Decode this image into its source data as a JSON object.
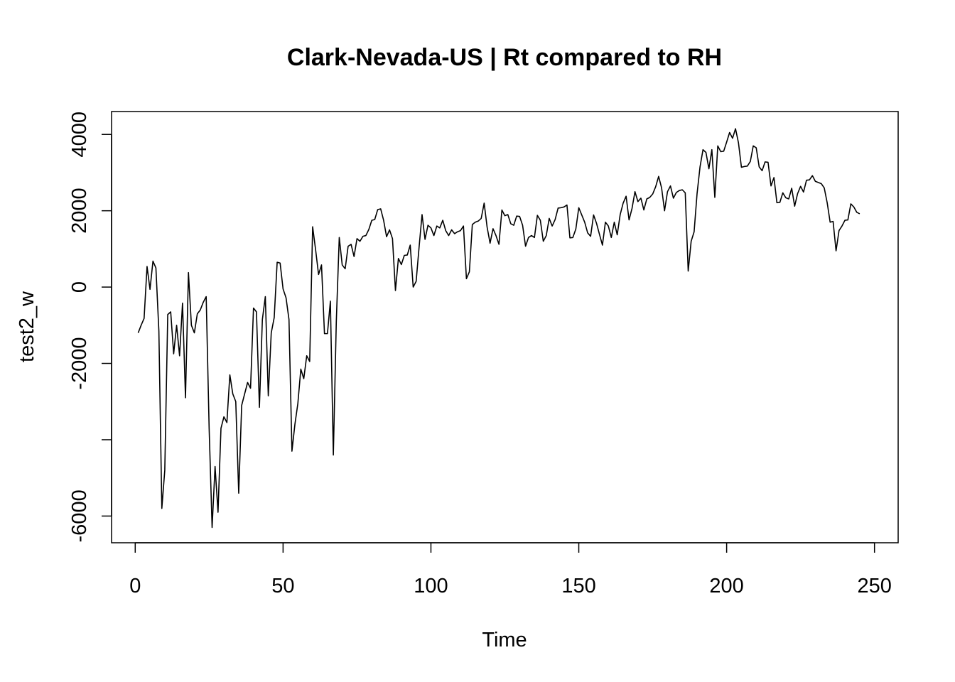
{
  "chart_data": {
    "type": "line",
    "title": "Clark-Nevada-US | Rt compared to RH",
    "xlabel": "Time",
    "ylabel": "test2_w",
    "xlim": [
      -8,
      258
    ],
    "ylim": [
      -6700,
      4600
    ],
    "x_ticks": [
      0,
      50,
      100,
      150,
      200,
      250
    ],
    "x_tick_labels": [
      "0",
      "50",
      "100",
      "150",
      "200",
      "250"
    ],
    "y_ticks": [
      -6000,
      -4000,
      -2000,
      0,
      2000,
      4000
    ],
    "y_tick_labels": [
      "-6000",
      "",
      "-2000",
      "0",
      "2000",
      "4000"
    ],
    "grid": false,
    "legend": "none",
    "line_color": "#000000",
    "series": [
      {
        "x_start": 1,
        "values": [
          -1200,
          -1000,
          -820,
          540,
          -60,
          680,
          500,
          -1150,
          -5800,
          -4800,
          -720,
          -650,
          -1750,
          -1000,
          -1800,
          -420,
          -2900,
          380,
          -1000,
          -1200,
          -700,
          -600,
          -400,
          -250,
          -3700,
          -6300,
          -4700,
          -5900,
          -3700,
          -3400,
          -3550,
          -2300,
          -2800,
          -3000,
          -5400,
          -3100,
          -2800,
          -2500,
          -2650,
          -550,
          -650,
          -3150,
          -850,
          -250,
          -2850,
          -1200,
          -800,
          650,
          630,
          -50,
          -280,
          -850,
          -4300,
          -3600,
          -3050,
          -2150,
          -2400,
          -1800,
          -1950,
          1580,
          980,
          330,
          580,
          -1220,
          -1220,
          -370,
          -4400,
          -900,
          1300,
          580,
          480,
          1070,
          1120,
          800,
          1270,
          1200,
          1330,
          1350,
          1510,
          1750,
          1770,
          2030,
          2050,
          1750,
          1320,
          1500,
          1270,
          -90,
          750,
          590,
          830,
          840,
          1100,
          0,
          150,
          1050,
          1900,
          1250,
          1620,
          1550,
          1350,
          1600,
          1550,
          1750,
          1480,
          1350,
          1500,
          1400,
          1450,
          1480,
          1600,
          220,
          400,
          1640,
          1700,
          1730,
          1800,
          2200,
          1570,
          1150,
          1530,
          1350,
          1120,
          2020,
          1870,
          1900,
          1660,
          1620,
          1860,
          1850,
          1620,
          1070,
          1300,
          1350,
          1300,
          1880,
          1750,
          1200,
          1350,
          1800,
          1600,
          1770,
          2070,
          2080,
          2100,
          2150,
          1290,
          1300,
          1520,
          2080,
          1890,
          1700,
          1420,
          1330,
          1890,
          1670,
          1380,
          1100,
          1700,
          1600,
          1300,
          1700,
          1370,
          1900,
          2200,
          2380,
          1760,
          2060,
          2500,
          2240,
          2330,
          2020,
          2310,
          2350,
          2440,
          2630,
          2900,
          2600,
          2000,
          2500,
          2650,
          2330,
          2480,
          2530,
          2550,
          2470,
          420,
          1200,
          1450,
          2450,
          3150,
          3600,
          3530,
          3100,
          3600,
          2350,
          3700,
          3550,
          3560,
          3800,
          4050,
          3900,
          4150,
          3780,
          3140,
          3160,
          3170,
          3290,
          3700,
          3650,
          3150,
          3050,
          3280,
          3270,
          2650,
          2870,
          2210,
          2220,
          2470,
          2340,
          2310,
          2590,
          2120,
          2450,
          2640,
          2490,
          2800,
          2810,
          2920,
          2770,
          2740,
          2710,
          2600,
          2210,
          1700,
          1720,
          950,
          1480,
          1600,
          1750,
          1760,
          2180,
          2100,
          1960,
          1920
        ]
      }
    ]
  }
}
